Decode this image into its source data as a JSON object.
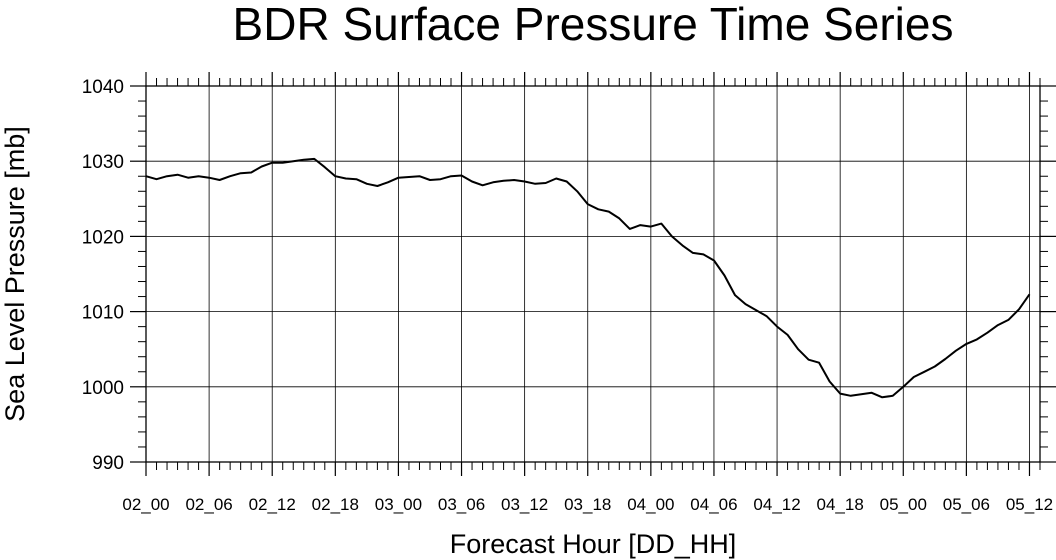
{
  "chart_data": {
    "type": "line",
    "title": "BDR Surface Pressure Time Series",
    "xlabel": "Forecast Hour [DD_HH]",
    "ylabel": "Sea Level Pressure [mb]",
    "ylim": [
      990,
      1040
    ],
    "y_ticks": [
      990,
      1000,
      1010,
      1020,
      1030,
      1040
    ],
    "x_ticks": [
      {
        "hour": 0,
        "label": "02_00"
      },
      {
        "hour": 6,
        "label": "02_06"
      },
      {
        "hour": 12,
        "label": "02_12"
      },
      {
        "hour": 18,
        "label": "02_18"
      },
      {
        "hour": 24,
        "label": "03_00"
      },
      {
        "hour": 30,
        "label": "03_06"
      },
      {
        "hour": 36,
        "label": "03_12"
      },
      {
        "hour": 42,
        "label": "03_18"
      },
      {
        "hour": 48,
        "label": "04_00"
      },
      {
        "hour": 54,
        "label": "04_06"
      },
      {
        "hour": 60,
        "label": "04_12"
      },
      {
        "hour": 66,
        "label": "04_18"
      },
      {
        "hour": 72,
        "label": "05_00"
      },
      {
        "hour": 78,
        "label": "05_06"
      },
      {
        "hour": 84,
        "label": "05_12"
      }
    ],
    "xlim": [
      0,
      85
    ],
    "grid": true,
    "series": [
      {
        "x": [
          0,
          1,
          2,
          3,
          4,
          5,
          6,
          7,
          8,
          9,
          10,
          11,
          12,
          13,
          14,
          15,
          16,
          17,
          18,
          19,
          20,
          21,
          22,
          23,
          24,
          25,
          26,
          27,
          28,
          29,
          30,
          31,
          32,
          33,
          34,
          35,
          36,
          37,
          38,
          39,
          40,
          41,
          42,
          43,
          44,
          45,
          46,
          47,
          48,
          49,
          50,
          51,
          52,
          53,
          54,
          55,
          56,
          57,
          58,
          59,
          60,
          61,
          62,
          63,
          64,
          65,
          66,
          67,
          68,
          69,
          70,
          71,
          72,
          73,
          74,
          75,
          76,
          77,
          78,
          79,
          80,
          81,
          82,
          83,
          84
        ],
        "values": [
          1028.0,
          1027.6,
          1028.0,
          1028.2,
          1027.8,
          1028.0,
          1027.8,
          1027.5,
          1028.0,
          1028.4,
          1028.5,
          1029.3,
          1029.8,
          1029.8,
          1030.0,
          1030.2,
          1030.3,
          1029.2,
          1028.0,
          1027.7,
          1027.6,
          1027.0,
          1026.7,
          1027.2,
          1027.8,
          1027.9,
          1028.0,
          1027.5,
          1027.6,
          1028.0,
          1028.1,
          1027.3,
          1026.8,
          1027.2,
          1027.4,
          1027.5,
          1027.3,
          1027.0,
          1027.1,
          1027.7,
          1027.3,
          1026.0,
          1024.3,
          1023.6,
          1023.3,
          1022.4,
          1021.0,
          1021.5,
          1021.3,
          1021.7,
          1020.0,
          1018.8,
          1017.8,
          1017.6,
          1016.8,
          1014.8,
          1012.2,
          1011.0,
          1010.2,
          1009.4,
          1008.0,
          1006.9,
          1005.0,
          1003.6,
          1003.2,
          1000.7,
          999.1,
          998.8,
          999.0,
          999.2,
          998.6,
          998.8,
          1000.0,
          1001.3,
          1002.0,
          1002.7,
          1003.7,
          1004.8,
          1005.7,
          1006.3,
          1007.2,
          1008.2,
          1008.9,
          1010.3,
          1012.3
        ]
      }
    ]
  }
}
